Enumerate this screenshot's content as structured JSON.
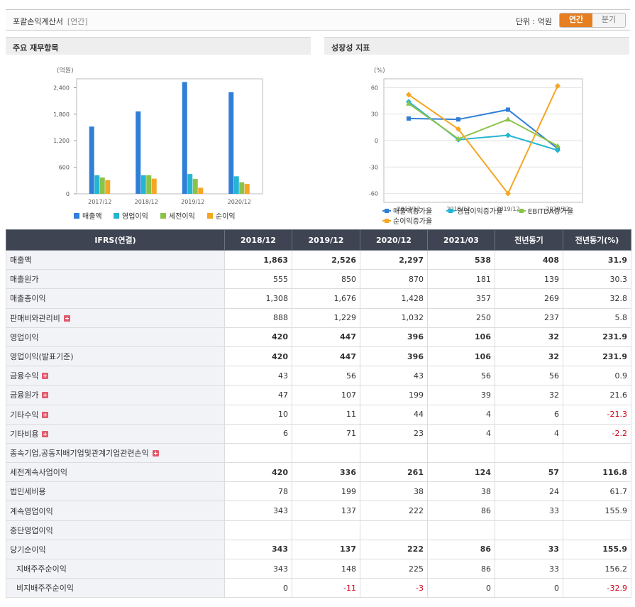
{
  "header": {
    "title": "포괄손익계산서",
    "subtitle": "[연간]",
    "unit_label": "단위 : 억원",
    "toggle": [
      "연간",
      "분기"
    ],
    "active_toggle": "연간"
  },
  "panels": {
    "left_title": "주요 재무항목",
    "right_title": "성장성 지표"
  },
  "chart_data": [
    {
      "type": "bar",
      "ylabel": "(억원)",
      "categories": [
        "2017/12",
        "2018/12",
        "2019/12",
        "2020/12"
      ],
      "yticks": [
        0,
        600,
        1200,
        1800,
        2400
      ],
      "ytick_labels": [
        "0",
        "600",
        "1,200",
        "1,800",
        "2,400"
      ],
      "ylim": [
        0,
        2600
      ],
      "series": [
        {
          "name": "매출액",
          "color": "#2f7fd8",
          "values": [
            1520,
            1863,
            2526,
            2297
          ]
        },
        {
          "name": "영업이익",
          "color": "#25b5d4",
          "values": [
            420,
            420,
            447,
            396
          ]
        },
        {
          "name": "세전이익",
          "color": "#8bc34a",
          "values": [
            370,
            420,
            336,
            261
          ]
        },
        {
          "name": "순이익",
          "color": "#f5a623",
          "values": [
            310,
            343,
            137,
            222
          ]
        }
      ],
      "grid": false,
      "legend": "bottom"
    },
    {
      "type": "line",
      "ylabel": "(%)",
      "categories": [
        "2017/12",
        "2018/12",
        "2019/12",
        "2020/12"
      ],
      "yticks": [
        60,
        30,
        0,
        -30,
        -60
      ],
      "ytick_labels": [
        "60",
        "30",
        "0",
        "-30",
        "-60"
      ],
      "ylim": [
        -70,
        70
      ],
      "series": [
        {
          "name": "매출액증가율",
          "color": "#2f7fd8",
          "marker": "square",
          "values": [
            25,
            24,
            35,
            -9
          ]
        },
        {
          "name": "영업이익증가율",
          "color": "#25b5d4",
          "marker": "diamond",
          "values": [
            44,
            1,
            6,
            -11
          ]
        },
        {
          "name": "EBITDA증가율",
          "color": "#8bc34a",
          "marker": "triangle",
          "values": [
            42,
            2,
            24,
            -6
          ]
        },
        {
          "name": "순이익증가율",
          "color": "#f5a623",
          "marker": "diamond",
          "values": [
            52,
            13,
            -60,
            62
          ]
        }
      ],
      "grid": true,
      "legend": "bottom"
    }
  ],
  "table": {
    "head": [
      "IFRS(연결)",
      "2018/12",
      "2019/12",
      "2020/12",
      "2021/03",
      "전년동기",
      "전년동기(%)"
    ],
    "rows": [
      {
        "label": "매출액",
        "bold": true,
        "expand": false,
        "indent": false,
        "cells": [
          "1,863",
          "2,526",
          "2,297",
          "538",
          "408",
          "31.9"
        ]
      },
      {
        "label": "매출원가",
        "bold": false,
        "expand": false,
        "indent": false,
        "cells": [
          "555",
          "850",
          "870",
          "181",
          "139",
          "30.3"
        ]
      },
      {
        "label": "매출총이익",
        "bold": false,
        "expand": false,
        "indent": false,
        "cells": [
          "1,308",
          "1,676",
          "1,428",
          "357",
          "269",
          "32.8"
        ]
      },
      {
        "label": "판매비와관리비",
        "bold": false,
        "expand": true,
        "indent": false,
        "cells": [
          "888",
          "1,229",
          "1,032",
          "250",
          "237",
          "5.8"
        ]
      },
      {
        "label": "영업이익",
        "bold": true,
        "expand": false,
        "indent": false,
        "cells": [
          "420",
          "447",
          "396",
          "106",
          "32",
          "231.9"
        ]
      },
      {
        "label": "영업이익(발표기준)",
        "bold": true,
        "expand": false,
        "indent": false,
        "cells": [
          "420",
          "447",
          "396",
          "106",
          "32",
          "231.9"
        ]
      },
      {
        "label": "금융수익",
        "bold": false,
        "expand": true,
        "indent": false,
        "cells": [
          "43",
          "56",
          "43",
          "56",
          "56",
          "0.9"
        ]
      },
      {
        "label": "금융원가",
        "bold": false,
        "expand": true,
        "indent": false,
        "cells": [
          "47",
          "107",
          "199",
          "39",
          "32",
          "21.6"
        ]
      },
      {
        "label": "기타수익",
        "bold": false,
        "expand": true,
        "indent": false,
        "cells": [
          "10",
          "11",
          "44",
          "4",
          "6",
          "-21.3"
        ]
      },
      {
        "label": "기타비용",
        "bold": false,
        "expand": true,
        "indent": false,
        "cells": [
          "6",
          "71",
          "23",
          "4",
          "4",
          "-2.2"
        ]
      },
      {
        "label": "종속기업,공동지배기업및관계기업관련손익",
        "bold": false,
        "expand": true,
        "indent": false,
        "cells": [
          "",
          "",
          "",
          "",
          "",
          ""
        ]
      },
      {
        "label": "세전계속사업이익",
        "bold": true,
        "expand": false,
        "indent": false,
        "cells": [
          "420",
          "336",
          "261",
          "124",
          "57",
          "116.8"
        ]
      },
      {
        "label": "법인세비용",
        "bold": false,
        "expand": false,
        "indent": false,
        "cells": [
          "78",
          "199",
          "38",
          "38",
          "24",
          "61.7"
        ]
      },
      {
        "label": "계속영업이익",
        "bold": false,
        "expand": false,
        "indent": false,
        "cells": [
          "343",
          "137",
          "222",
          "86",
          "33",
          "155.9"
        ]
      },
      {
        "label": "중단영업이익",
        "bold": false,
        "expand": false,
        "indent": false,
        "cells": [
          "",
          "",
          "",
          "",
          "",
          ""
        ]
      },
      {
        "label": "당기순이익",
        "bold": true,
        "expand": false,
        "indent": false,
        "cells": [
          "343",
          "137",
          "222",
          "86",
          "33",
          "155.9"
        ]
      },
      {
        "label": "지배주주순이익",
        "bold": false,
        "expand": false,
        "indent": true,
        "cells": [
          "343",
          "148",
          "225",
          "86",
          "33",
          "156.2"
        ]
      },
      {
        "label": "비지배주주순이익",
        "bold": false,
        "expand": false,
        "indent": true,
        "cells": [
          "0",
          "-11",
          "-3",
          "0",
          "0",
          "-32.9"
        ]
      }
    ]
  }
}
